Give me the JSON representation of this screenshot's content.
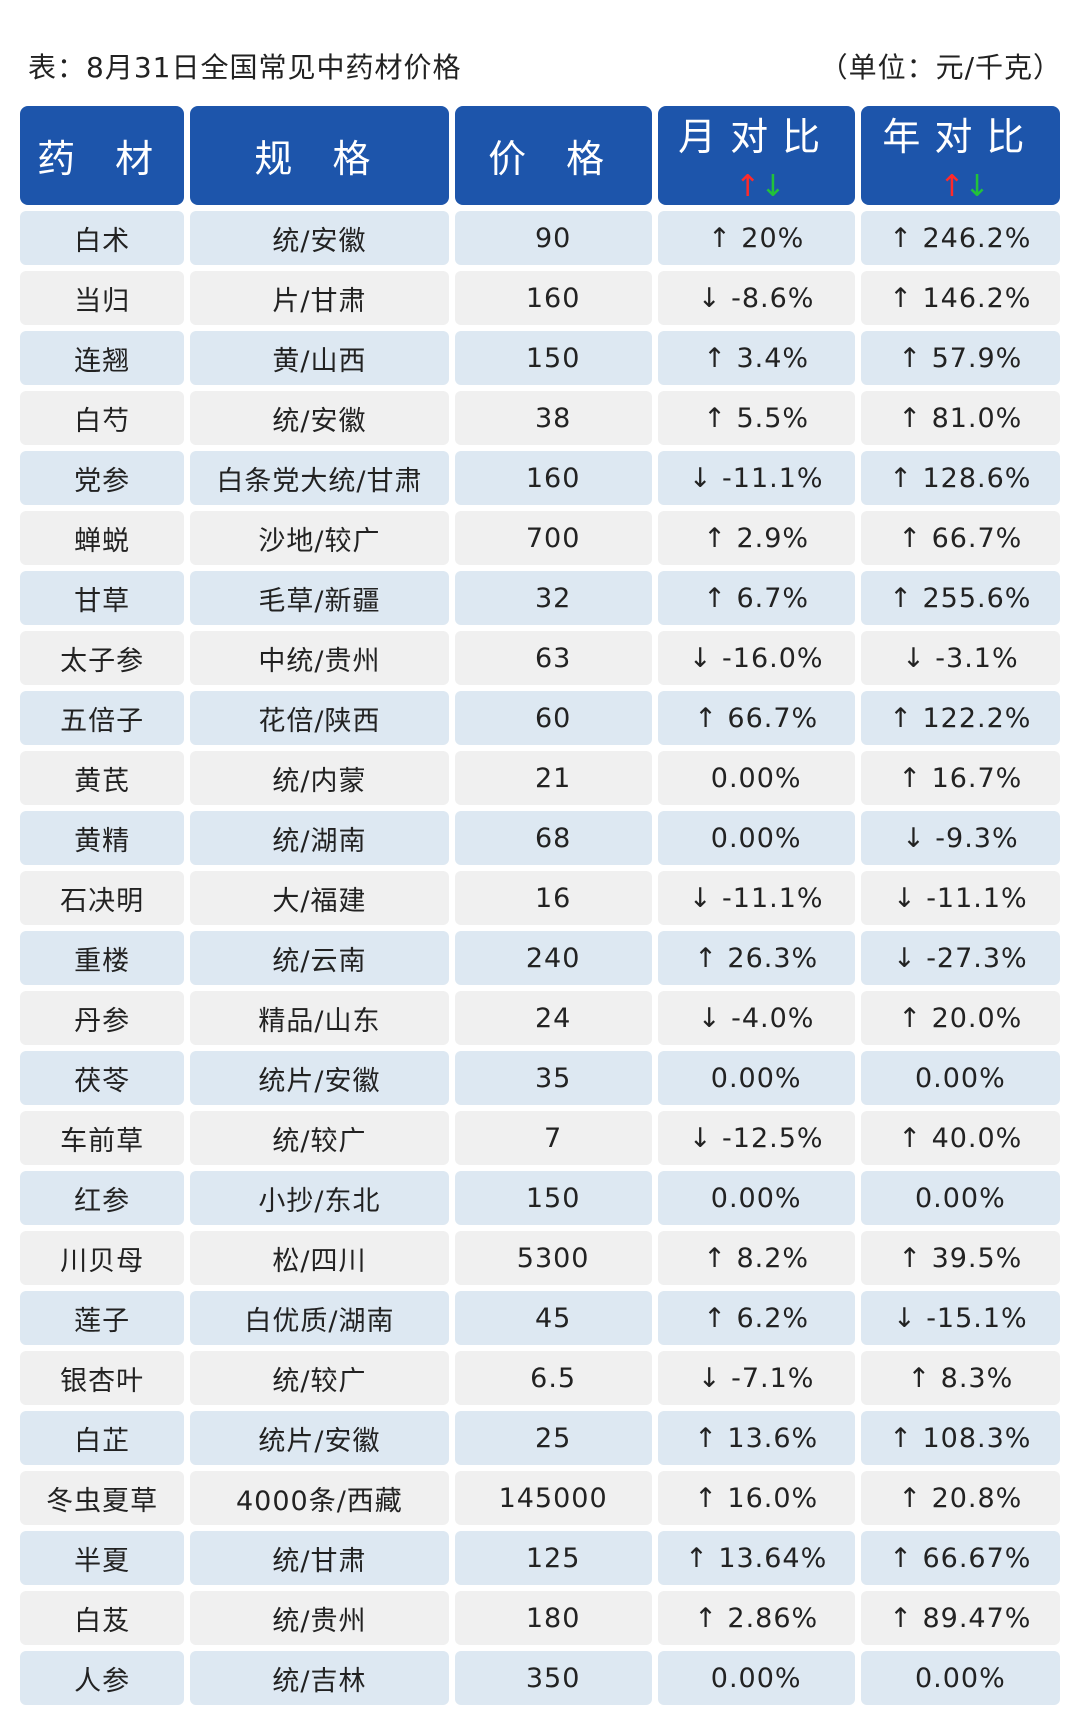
{
  "caption": {
    "title": "表：8月31日全国常见中药材价格",
    "unit": "（单位：元/千克）"
  },
  "headers": {
    "herb": "药 材",
    "spec": "规 格",
    "price": "价 格",
    "mom": "月对比",
    "yoy": "年对比",
    "up_arrow": "↑",
    "down_arrow": "↓"
  },
  "colors": {
    "header_bg": "#1d55ab",
    "row_blue": "#dde8f2",
    "row_gray": "#f0f0f0",
    "up": "#e02020",
    "down": "#1aa33a"
  },
  "rows": [
    {
      "herb": "白术",
      "spec": "统/安徽",
      "price": "90",
      "mom": "↑ 20%",
      "yoy": "↑ 246.2%"
    },
    {
      "herb": "当归",
      "spec": "片/甘肃",
      "price": "160",
      "mom": "↓ -8.6%",
      "yoy": "↑ 146.2%"
    },
    {
      "herb": "连翘",
      "spec": "黄/山西",
      "price": "150",
      "mom": "↑ 3.4%",
      "yoy": "↑ 57.9%"
    },
    {
      "herb": "白芍",
      "spec": "统/安徽",
      "price": "38",
      "mom": "↑ 5.5%",
      "yoy": "↑ 81.0%"
    },
    {
      "herb": "党参",
      "spec": "白条党大统/甘肃",
      "price": "160",
      "mom": "↓ -11.1%",
      "yoy": "↑ 128.6%"
    },
    {
      "herb": "蝉蜕",
      "spec": "沙地/较广",
      "price": "700",
      "mom": "↑ 2.9%",
      "yoy": "↑ 66.7%"
    },
    {
      "herb": "甘草",
      "spec": "毛草/新疆",
      "price": "32",
      "mom": "↑ 6.7%",
      "yoy": "↑ 255.6%"
    },
    {
      "herb": "太子参",
      "spec": "中统/贵州",
      "price": "63",
      "mom": "↓ -16.0%",
      "yoy": "↓ -3.1%"
    },
    {
      "herb": "五倍子",
      "spec": "花倍/陕西",
      "price": "60",
      "mom": "↑ 66.7%",
      "yoy": "↑ 122.2%"
    },
    {
      "herb": "黄芪",
      "spec": "统/内蒙",
      "price": "21",
      "mom": "0.00%",
      "yoy": "↑ 16.7%"
    },
    {
      "herb": "黄精",
      "spec": "统/湖南",
      "price": "68",
      "mom": "0.00%",
      "yoy": "↓ -9.3%"
    },
    {
      "herb": "石决明",
      "spec": "大/福建",
      "price": "16",
      "mom": "↓ -11.1%",
      "yoy": "↓ -11.1%"
    },
    {
      "herb": "重楼",
      "spec": "统/云南",
      "price": "240",
      "mom": "↑ 26.3%",
      "yoy": "↓ -27.3%"
    },
    {
      "herb": "丹参",
      "spec": "精品/山东",
      "price": "24",
      "mom": "↓ -4.0%",
      "yoy": "↑ 20.0%"
    },
    {
      "herb": "茯苓",
      "spec": "统片/安徽",
      "price": "35",
      "mom": "0.00%",
      "yoy": "0.00%"
    },
    {
      "herb": "车前草",
      "spec": "统/较广",
      "price": "7",
      "mom": "↓ -12.5%",
      "yoy": "↑ 40.0%"
    },
    {
      "herb": "红参",
      "spec": "小抄/东北",
      "price": "150",
      "mom": "0.00%",
      "yoy": "0.00%"
    },
    {
      "herb": "川贝母",
      "spec": "松/四川",
      "price": "5300",
      "mom": "↑ 8.2%",
      "yoy": "↑ 39.5%"
    },
    {
      "herb": "莲子",
      "spec": "白优质/湖南",
      "price": "45",
      "mom": "↑ 6.2%",
      "yoy": "↓ -15.1%"
    },
    {
      "herb": "银杏叶",
      "spec": "统/较广",
      "price": "6.5",
      "mom": "↓ -7.1%",
      "yoy": "↑ 8.3%"
    },
    {
      "herb": "白芷",
      "spec": "统片/安徽",
      "price": "25",
      "mom": "↑ 13.6%",
      "yoy": "↑ 108.3%"
    },
    {
      "herb": "冬虫夏草",
      "spec": "4000条/西藏",
      "price": "145000",
      "mom": "↑ 16.0%",
      "yoy": "↑ 20.8%"
    },
    {
      "herb": "半夏",
      "spec": "统/甘肃",
      "price": "125",
      "mom": "↑ 13.64%",
      "yoy": "↑ 66.67%"
    },
    {
      "herb": "白芨",
      "spec": "统/贵州",
      "price": "180",
      "mom": "↑ 2.86%",
      "yoy": "↑ 89.47%"
    },
    {
      "herb": "人参",
      "spec": "统/吉林",
      "price": "350",
      "mom": "0.00%",
      "yoy": "0.00%"
    }
  ]
}
